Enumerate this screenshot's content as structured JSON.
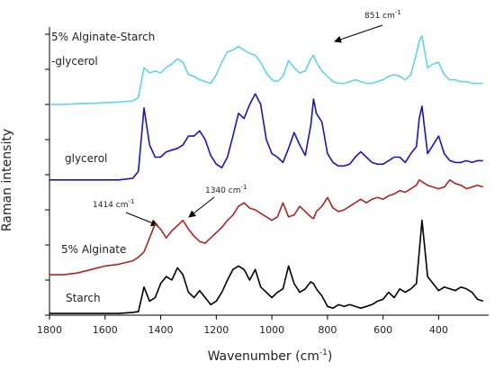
{
  "chart_data": {
    "type": "line",
    "xlabel": {
      "text": "Wavenumber (cm",
      "sup": "-1",
      "end": ")"
    },
    "ylabel": "Raman intensity",
    "xlim": [
      1800,
      220
    ],
    "xticks": [
      1800,
      1600,
      1400,
      1200,
      1000,
      800,
      600,
      400
    ],
    "ylim": [
      0,
      8
    ],
    "yticks": [
      0,
      1,
      2,
      3,
      4,
      5,
      6,
      7,
      8
    ],
    "x": [
      1800,
      1750,
      1700,
      1650,
      1600,
      1550,
      1500,
      1480,
      1460,
      1440,
      1420,
      1400,
      1380,
      1360,
      1340,
      1320,
      1300,
      1280,
      1260,
      1240,
      1220,
      1200,
      1180,
      1160,
      1140,
      1120,
      1100,
      1080,
      1060,
      1040,
      1020,
      1000,
      980,
      960,
      940,
      920,
      900,
      880,
      860,
      850,
      840,
      820,
      800,
      780,
      760,
      740,
      720,
      700,
      680,
      660,
      640,
      620,
      600,
      580,
      560,
      540,
      520,
      500,
      480,
      470,
      460,
      440,
      420,
      400,
      380,
      360,
      340,
      320,
      300,
      280,
      260,
      240
    ],
    "series": [
      {
        "name": "Starch",
        "color": "#000000",
        "values": [
          0.05,
          0.05,
          0.05,
          0.05,
          0.05,
          0.05,
          0.08,
          0.1,
          0.8,
          0.4,
          0.5,
          0.9,
          1.1,
          1.0,
          1.35,
          1.15,
          0.65,
          0.5,
          0.7,
          0.5,
          0.3,
          0.4,
          0.65,
          1.0,
          1.3,
          1.4,
          1.3,
          1.0,
          1.3,
          0.8,
          0.65,
          0.5,
          0.65,
          0.75,
          1.4,
          0.9,
          0.65,
          0.75,
          0.95,
          0.9,
          0.75,
          0.55,
          0.25,
          0.2,
          0.3,
          0.25,
          0.3,
          0.25,
          0.2,
          0.25,
          0.3,
          0.4,
          0.45,
          0.65,
          0.5,
          0.75,
          0.65,
          0.75,
          0.9,
          1.8,
          2.7,
          1.1,
          0.9,
          0.7,
          0.8,
          0.75,
          0.7,
          0.8,
          0.75,
          0.65,
          0.45,
          0.4
        ]
      },
      {
        "name": "5% Alginate",
        "color": "#b22222",
        "values": [
          1.15,
          1.15,
          1.2,
          1.3,
          1.4,
          1.45,
          1.55,
          1.65,
          1.8,
          2.2,
          2.6,
          2.45,
          2.2,
          2.4,
          2.55,
          2.7,
          2.45,
          2.25,
          2.1,
          2.05,
          2.2,
          2.35,
          2.5,
          2.7,
          2.85,
          3.1,
          3.2,
          3.05,
          3.0,
          2.9,
          2.8,
          2.7,
          2.8,
          3.2,
          2.8,
          2.85,
          3.1,
          2.95,
          2.8,
          2.75,
          2.95,
          3.1,
          3.35,
          3.05,
          2.95,
          3.0,
          3.1,
          3.2,
          3.3,
          3.2,
          3.3,
          3.35,
          3.3,
          3.4,
          3.45,
          3.55,
          3.5,
          3.6,
          3.7,
          3.85,
          3.8,
          3.7,
          3.65,
          3.6,
          3.65,
          3.85,
          3.75,
          3.7,
          3.6,
          3.65,
          3.7,
          3.65
        ]
      },
      {
        "name": "glycerol",
        "color": "#1515c8",
        "values": [
          3.85,
          3.85,
          3.85,
          3.85,
          3.85,
          3.85,
          3.9,
          4.1,
          5.9,
          4.85,
          4.5,
          4.5,
          4.65,
          4.7,
          4.75,
          4.85,
          5.1,
          5.1,
          5.25,
          5.0,
          4.55,
          4.3,
          4.2,
          4.5,
          5.1,
          5.75,
          5.6,
          6.0,
          6.3,
          6.0,
          5.0,
          4.6,
          4.5,
          4.35,
          4.75,
          5.2,
          4.85,
          4.55,
          5.4,
          6.15,
          5.75,
          5.5,
          4.6,
          4.35,
          4.25,
          4.25,
          4.3,
          4.5,
          4.65,
          4.5,
          4.35,
          4.3,
          4.3,
          4.4,
          4.5,
          4.5,
          4.35,
          4.6,
          4.8,
          5.6,
          5.95,
          4.6,
          4.85,
          5.1,
          4.6,
          4.4,
          4.35,
          4.35,
          4.4,
          4.35,
          4.4,
          4.4
        ]
      },
      {
        "name": "5% Alginate-Starch -glycerol",
        "color": "#5bd6e8",
        "values": [
          6.0,
          6.0,
          6.02,
          6.03,
          6.05,
          6.07,
          6.1,
          6.2,
          7.05,
          6.9,
          6.95,
          6.9,
          7.05,
          7.15,
          7.3,
          7.2,
          6.85,
          6.8,
          6.7,
          6.65,
          6.6,
          6.85,
          7.2,
          7.5,
          7.55,
          7.65,
          7.55,
          7.45,
          7.4,
          7.2,
          6.9,
          6.7,
          6.65,
          6.8,
          7.25,
          7.05,
          6.9,
          6.95,
          7.3,
          7.4,
          7.2,
          6.95,
          6.8,
          6.65,
          6.6,
          6.6,
          6.65,
          6.7,
          6.65,
          6.6,
          6.6,
          6.65,
          6.7,
          6.8,
          6.85,
          6.8,
          6.7,
          6.85,
          7.45,
          7.8,
          7.95,
          7.05,
          7.15,
          7.2,
          6.85,
          6.7,
          6.7,
          6.65,
          6.65,
          6.6,
          6.6,
          6.6
        ]
      }
    ],
    "labels": [
      "5% Alginate-Starch",
      "-glycerol",
      "glycerol",
      "5% Alginate",
      "Starch"
    ],
    "annotations": [
      {
        "text": "851 cm",
        "sup": "-1"
      },
      {
        "text": "1414 cm",
        "sup": "-1"
      },
      {
        "text": "1340 cm",
        "sup": "-1"
      }
    ]
  }
}
